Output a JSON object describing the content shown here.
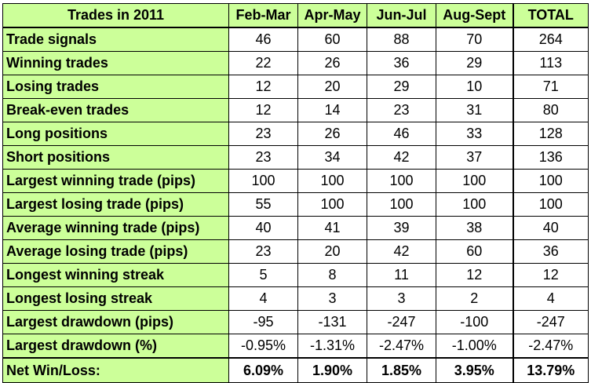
{
  "table": {
    "header": {
      "title": "Trades in 2011",
      "columns": [
        "Feb-Mar",
        "Apr-May",
        "Jun-Jul",
        "Aug-Sept",
        "TOTAL"
      ]
    },
    "rows": [
      {
        "label": "Trade signals",
        "values": [
          "46",
          "60",
          "88",
          "70",
          "264"
        ]
      },
      {
        "label": "Winning trades",
        "values": [
          "22",
          "26",
          "36",
          "29",
          "113"
        ]
      },
      {
        "label": "Losing trades",
        "values": [
          "12",
          "20",
          "29",
          "10",
          "71"
        ]
      },
      {
        "label": "Break-even trades",
        "values": [
          "12",
          "14",
          "23",
          "31",
          "80"
        ]
      },
      {
        "label": "Long positions",
        "values": [
          "23",
          "26",
          "46",
          "33",
          "128"
        ]
      },
      {
        "label": "Short positions",
        "values": [
          "23",
          "34",
          "42",
          "37",
          "136"
        ]
      },
      {
        "label": "Largest winning trade (pips)",
        "values": [
          "100",
          "100",
          "100",
          "100",
          "100"
        ]
      },
      {
        "label": "Largest losing trade (pips)",
        "values": [
          "55",
          "100",
          "100",
          "100",
          "100"
        ]
      },
      {
        "label": "Average winning trade (pips)",
        "values": [
          "40",
          "41",
          "39",
          "38",
          "40"
        ]
      },
      {
        "label": "Average losing trade (pips)",
        "values": [
          "23",
          "20",
          "42",
          "60",
          "36"
        ]
      },
      {
        "label": "Longest winning streak",
        "values": [
          "5",
          "8",
          "11",
          "12",
          "12"
        ]
      },
      {
        "label": "Longest losing streak",
        "values": [
          "4",
          "3",
          "3",
          "2",
          "4"
        ]
      },
      {
        "label": "Largest drawdown (pips)",
        "values": [
          "-95",
          "-131",
          "-247",
          "-100",
          "-247"
        ]
      },
      {
        "label": "Largest drawdown (%)",
        "values": [
          "-0.95%",
          "-1.31%",
          "-2.47%",
          "-1.00%",
          "-2.47%"
        ]
      }
    ],
    "net": {
      "label": "Net Win/Loss:",
      "values": [
        "6.09%",
        "1.90%",
        "1.85%",
        "3.95%",
        "13.79%"
      ]
    }
  },
  "colors": {
    "label_background": "#ccff99",
    "cell_background": "#ffffff",
    "border": "#000000"
  }
}
